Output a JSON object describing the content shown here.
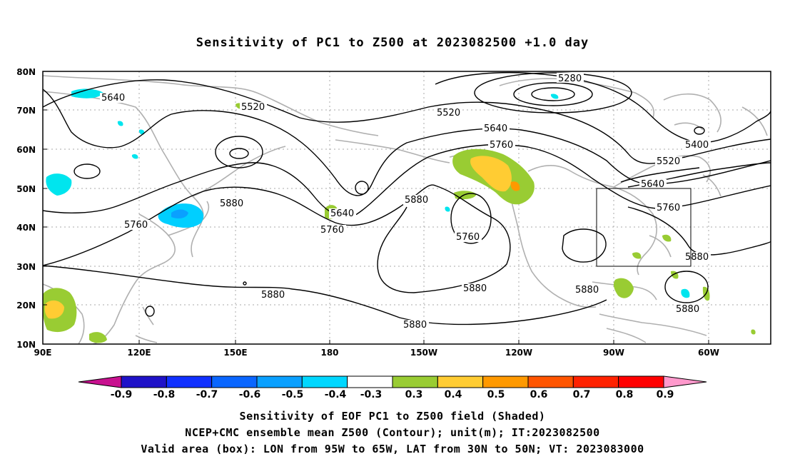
{
  "title": "Sensitivity of PC1 to Z500 at 2023082500 +1.0 day",
  "lat_labels": [
    "80N",
    "70N",
    "60N",
    "50N",
    "40N",
    "30N",
    "20N",
    "10N"
  ],
  "lon_labels": [
    "90E",
    "120E",
    "150E",
    "180",
    "150W",
    "120W",
    "90W",
    "60W"
  ],
  "contour_labels": [
    "5280",
    "5400",
    "5520",
    "5520",
    "5520",
    "5640",
    "5640",
    "5640",
    "5640",
    "5760",
    "5760",
    "5760",
    "5760",
    "5760",
    "5880",
    "5880",
    "5880",
    "5880",
    "5880",
    "5880",
    "5880",
    "5880"
  ],
  "colorbar": {
    "labels": [
      "-0.9",
      "-0.8",
      "-0.7",
      "-0.6",
      "-0.5",
      "-0.4",
      "-0.3",
      "0.3",
      "0.4",
      "0.5",
      "0.6",
      "0.7",
      "0.8",
      "0.9"
    ],
    "colors": [
      "#1f12c8",
      "#1030ff",
      "#0a66ff",
      "#0aa0ff",
      "#00d7ff",
      "#ffffff",
      "#99cc33",
      "#ffcc33",
      "#ff9900",
      "#ff5500",
      "#ff2200",
      "#ff0000"
    ],
    "low_arrow_color": "#c8118f",
    "high_arrow_color": "#ff99cc"
  },
  "footer": {
    "line1": "Sensitivity of EOF PC1 to Z500 field (Shaded)",
    "line2": "NCEP+CMC ensemble mean Z500 (Contour); unit(m); IT:2023082500",
    "line3": "Valid area (box): LON from 95W to 65W, LAT from 30N to 50N; VT: 2023083000"
  }
}
